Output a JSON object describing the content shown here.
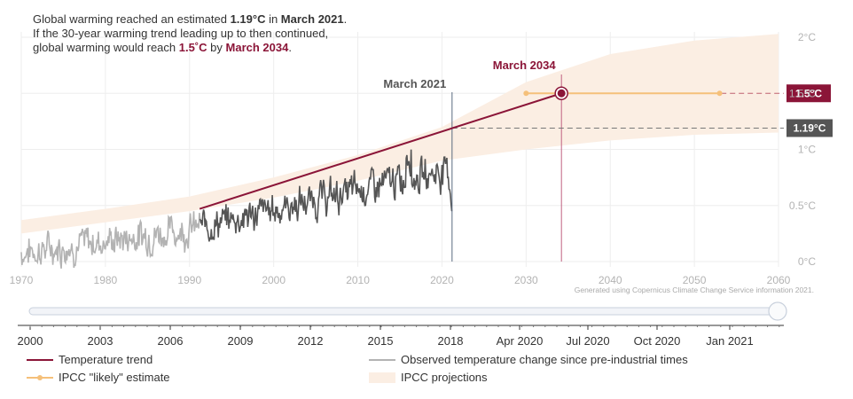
{
  "intro": {
    "line1_a": "Global warming reached an estimated ",
    "line1_b": "1.19°C",
    "line1_c": " in ",
    "line1_d": "March 2021",
    "line1_e": ".",
    "line2": "If the 30-year warming trend leading up to then continued,",
    "line3_a": "global warming would reach ",
    "line3_b": "1.5˚C",
    "line3_c": " by ",
    "line3_d": "March 2034",
    "line3_e": "."
  },
  "annotations": {
    "march2021": "March 2021",
    "march2034": "March 2034",
    "badge_15": "1.5°C",
    "badge_119": "1.19°C",
    "credit": "Generated using Copernicus Climate Change Service information 2021."
  },
  "colors": {
    "trend": "#8b1538",
    "observed_recent": "#555555",
    "observed_early": "#b3b3b3",
    "ipcc_likely": "#f5c07a",
    "projection": "#fbeee3",
    "badge_dark": "#555555"
  },
  "chart_data": {
    "type": "line",
    "x_range": [
      1970,
      2060
    ],
    "y_range": [
      0,
      2
    ],
    "x_ticks": [
      "1970",
      "1980",
      "1990",
      "2000",
      "2010",
      "2020",
      "2030",
      "2040",
      "2050",
      "2060"
    ],
    "y_ticks": [
      "0°C",
      "0.5°C",
      "1°C",
      "1.5°C",
      "2°C"
    ],
    "series": [
      {
        "name": "Temperature trend",
        "x": [
          1991.2,
          2034.2
        ],
        "y": [
          0.47,
          1.5
        ]
      },
      {
        "name": "Observed temperature change since pre-industrial times",
        "x_start": 1970.0,
        "x_end": 2021.2
      },
      {
        "name": "IPCC \"likely\" estimate",
        "x": [
          2030,
          2034.2,
          2053
        ],
        "y": [
          1.5,
          1.5,
          1.5
        ]
      },
      {
        "name": "IPCC projections",
        "x": [
          1970,
          1980,
          1990,
          2000,
          2010,
          2020,
          2030,
          2040,
          2050,
          2060
        ],
        "lower": [
          0.25,
          0.35,
          0.45,
          0.57,
          0.72,
          0.9,
          1.0,
          1.08,
          1.13,
          1.15
        ],
        "upper": [
          0.37,
          0.47,
          0.58,
          0.75,
          0.95,
          1.2,
          1.6,
          1.85,
          1.97,
          2.03
        ]
      }
    ],
    "markers": {
      "march_2021": 2021.2,
      "march_2034": 2034.2,
      "current_warming": 1.19,
      "target": 1.5
    }
  },
  "slider": {
    "ticks": [
      "2000",
      "2003",
      "2006",
      "2009",
      "2012",
      "2015",
      "2018",
      "Apr 2020",
      "Jul 2020",
      "Oct 2020",
      "Jan 2021"
    ]
  },
  "legend": {
    "trend": "Temperature trend",
    "observed": "Observed temperature change since pre-industrial times",
    "ipcc": "IPCC \"likely\" estimate",
    "projections": "IPCC projections"
  }
}
